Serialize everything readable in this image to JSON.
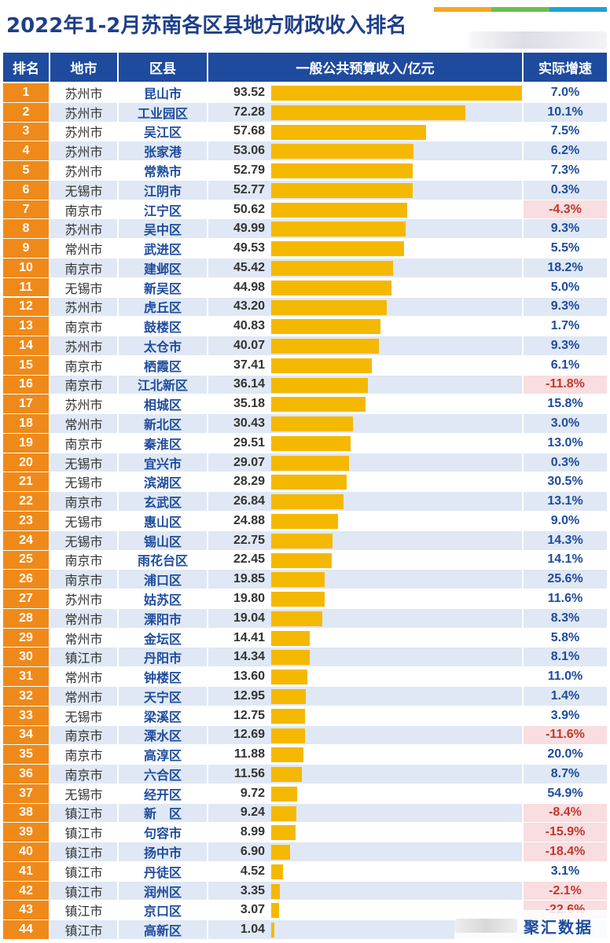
{
  "title": "2022年1-2月苏南各区县地方财政收入排名",
  "accent_colors": [
    "#f5a623",
    "#6abf4b",
    "#1ea0d8"
  ],
  "watermark": "聚汇数据",
  "columns": {
    "rank": "排名",
    "city": "地市",
    "district": "区县",
    "revenue": "一般公共预算收入/亿元",
    "growth": "实际增速"
  },
  "colors": {
    "header": "#1e4b9e",
    "rank": "#ef8a1a",
    "bar": "#f5b800",
    "negative": "#c0392b"
  },
  "rows": [
    {
      "rank": "1",
      "city": "苏州市",
      "district": "昆山市",
      "revenue": "93.52",
      "growth": "7.0%",
      "negative": false
    },
    {
      "rank": "2",
      "city": "苏州市",
      "district": "工业园区",
      "revenue": "72.28",
      "growth": "10.1%",
      "negative": false
    },
    {
      "rank": "3",
      "city": "苏州市",
      "district": "吴江区",
      "revenue": "57.68",
      "growth": "7.5%",
      "negative": false
    },
    {
      "rank": "4",
      "city": "苏州市",
      "district": "张家港",
      "revenue": "53.06",
      "growth": "6.2%",
      "negative": false
    },
    {
      "rank": "5",
      "city": "苏州市",
      "district": "常熟市",
      "revenue": "52.79",
      "growth": "7.3%",
      "negative": false
    },
    {
      "rank": "6",
      "city": "无锡市",
      "district": "江阴市",
      "revenue": "52.77",
      "growth": "0.3%",
      "negative": false
    },
    {
      "rank": "7",
      "city": "南京市",
      "district": "江宁区",
      "revenue": "50.62",
      "growth": "-4.3%",
      "negative": true
    },
    {
      "rank": "8",
      "city": "苏州市",
      "district": "吴中区",
      "revenue": "49.99",
      "growth": "9.3%",
      "negative": false
    },
    {
      "rank": "9",
      "city": "常州市",
      "district": "武进区",
      "revenue": "49.53",
      "growth": "5.5%",
      "negative": false
    },
    {
      "rank": "10",
      "city": "南京市",
      "district": "建邺区",
      "revenue": "45.42",
      "growth": "18.2%",
      "negative": false
    },
    {
      "rank": "11",
      "city": "无锡市",
      "district": "新吴区",
      "revenue": "44.98",
      "growth": "5.0%",
      "negative": false
    },
    {
      "rank": "12",
      "city": "苏州市",
      "district": "虎丘区",
      "revenue": "43.20",
      "growth": "9.3%",
      "negative": false
    },
    {
      "rank": "13",
      "city": "南京市",
      "district": "鼓楼区",
      "revenue": "40.83",
      "growth": "1.7%",
      "negative": false
    },
    {
      "rank": "14",
      "city": "苏州市",
      "district": "太仓市",
      "revenue": "40.07",
      "growth": "9.3%",
      "negative": false
    },
    {
      "rank": "15",
      "city": "南京市",
      "district": "栖霞区",
      "revenue": "37.41",
      "growth": "6.1%",
      "negative": false
    },
    {
      "rank": "16",
      "city": "南京市",
      "district": "江北新区",
      "revenue": "36.14",
      "growth": "-11.8%",
      "negative": true
    },
    {
      "rank": "17",
      "city": "苏州市",
      "district": "相城区",
      "revenue": "35.18",
      "growth": "15.8%",
      "negative": false
    },
    {
      "rank": "18",
      "city": "常州市",
      "district": "新北区",
      "revenue": "30.43",
      "growth": "3.0%",
      "negative": false
    },
    {
      "rank": "19",
      "city": "南京市",
      "district": "秦淮区",
      "revenue": "29.51",
      "growth": "13.0%",
      "negative": false
    },
    {
      "rank": "20",
      "city": "无锡市",
      "district": "宜兴市",
      "revenue": "29.07",
      "growth": "0.3%",
      "negative": false
    },
    {
      "rank": "21",
      "city": "无锡市",
      "district": "滨湖区",
      "revenue": "28.29",
      "growth": "30.5%",
      "negative": false
    },
    {
      "rank": "22",
      "city": "南京市",
      "district": "玄武区",
      "revenue": "26.84",
      "growth": "13.1%",
      "negative": false
    },
    {
      "rank": "23",
      "city": "无锡市",
      "district": "惠山区",
      "revenue": "24.88",
      "growth": "9.0%",
      "negative": false
    },
    {
      "rank": "24",
      "city": "无锡市",
      "district": "锡山区",
      "revenue": "22.75",
      "growth": "14.3%",
      "negative": false
    },
    {
      "rank": "25",
      "city": "南京市",
      "district": "雨花台区",
      "revenue": "22.45",
      "growth": "14.1%",
      "negative": false
    },
    {
      "rank": "26",
      "city": "南京市",
      "district": "浦口区",
      "revenue": "19.85",
      "growth": "25.6%",
      "negative": false
    },
    {
      "rank": "27",
      "city": "苏州市",
      "district": "姑苏区",
      "revenue": "19.80",
      "growth": "11.6%",
      "negative": false
    },
    {
      "rank": "28",
      "city": "常州市",
      "district": "溧阳市",
      "revenue": "19.04",
      "growth": "8.3%",
      "negative": false
    },
    {
      "rank": "29",
      "city": "常州市",
      "district": "金坛区",
      "revenue": "14.41",
      "growth": "5.8%",
      "negative": false
    },
    {
      "rank": "30",
      "city": "镇江市",
      "district": "丹阳市",
      "revenue": "14.34",
      "growth": "8.1%",
      "negative": false
    },
    {
      "rank": "31",
      "city": "常州市",
      "district": "钟楼区",
      "revenue": "13.60",
      "growth": "11.0%",
      "negative": false
    },
    {
      "rank": "32",
      "city": "常州市",
      "district": "天宁区",
      "revenue": "12.95",
      "growth": "1.4%",
      "negative": false
    },
    {
      "rank": "33",
      "city": "无锡市",
      "district": "梁溪区",
      "revenue": "12.75",
      "growth": "3.9%",
      "negative": false
    },
    {
      "rank": "34",
      "city": "南京市",
      "district": "溧水区",
      "revenue": "12.69",
      "growth": "-11.6%",
      "negative": true
    },
    {
      "rank": "35",
      "city": "南京市",
      "district": "高淳区",
      "revenue": "11.88",
      "growth": "20.0%",
      "negative": false
    },
    {
      "rank": "36",
      "city": "南京市",
      "district": "六合区",
      "revenue": "11.56",
      "growth": "8.7%",
      "negative": false
    },
    {
      "rank": "37",
      "city": "无锡市",
      "district": "经开区",
      "revenue": "9.72",
      "growth": "54.9%",
      "negative": false
    },
    {
      "rank": "38",
      "city": "镇江市",
      "district": "新　区",
      "revenue": "9.24",
      "growth": "-8.4%",
      "negative": true
    },
    {
      "rank": "39",
      "city": "镇江市",
      "district": "句容市",
      "revenue": "8.99",
      "growth": "-15.9%",
      "negative": true
    },
    {
      "rank": "40",
      "city": "镇江市",
      "district": "扬中市",
      "revenue": "6.90",
      "growth": "-18.4%",
      "negative": true
    },
    {
      "rank": "41",
      "city": "镇江市",
      "district": "丹徒区",
      "revenue": "4.52",
      "growth": "3.1%",
      "negative": false
    },
    {
      "rank": "42",
      "city": "镇江市",
      "district": "润州区",
      "revenue": "3.35",
      "growth": "-2.1%",
      "negative": true
    },
    {
      "rank": "43",
      "city": "镇江市",
      "district": "京口区",
      "revenue": "3.07",
      "growth": "-22.6%",
      "negative": true
    },
    {
      "rank": "44",
      "city": "镇江市",
      "district": "高新区",
      "revenue": "1.04",
      "growth": "",
      "negative": false
    }
  ],
  "chart_data": {
    "type": "bar",
    "title": "2022年1-2月苏南各区县地方财政收入排名",
    "ylabel": "一般公共预算收入/亿元",
    "orientation": "horizontal",
    "categories": [
      "昆山市",
      "工业园区",
      "吴江区",
      "张家港",
      "常熟市",
      "江阴市",
      "江宁区",
      "吴中区",
      "武进区",
      "建邺区",
      "新吴区",
      "虎丘区",
      "鼓楼区",
      "太仓市",
      "栖霞区",
      "江北新区",
      "相城区",
      "新北区",
      "秦淮区",
      "宜兴市",
      "滨湖区",
      "玄武区",
      "惠山区",
      "锡山区",
      "雨花台区",
      "浦口区",
      "姑苏区",
      "溧阳市",
      "金坛区",
      "丹阳市",
      "钟楼区",
      "天宁区",
      "梁溪区",
      "溧水区",
      "高淳区",
      "六合区",
      "经开区",
      "新　区",
      "句容市",
      "扬中市",
      "丹徒区",
      "润州区",
      "京口区",
      "高新区"
    ],
    "values": [
      93.52,
      72.28,
      57.68,
      53.06,
      52.79,
      52.77,
      50.62,
      49.99,
      49.53,
      45.42,
      44.98,
      43.2,
      40.83,
      40.07,
      37.41,
      36.14,
      35.18,
      30.43,
      29.51,
      29.07,
      28.29,
      26.84,
      24.88,
      22.75,
      22.45,
      19.85,
      19.8,
      19.04,
      14.41,
      14.34,
      13.6,
      12.95,
      12.75,
      12.69,
      11.88,
      11.56,
      9.72,
      9.24,
      8.99,
      6.9,
      4.52,
      3.35,
      3.07,
      1.04
    ],
    "xlim": [
      0,
      93.52
    ]
  }
}
